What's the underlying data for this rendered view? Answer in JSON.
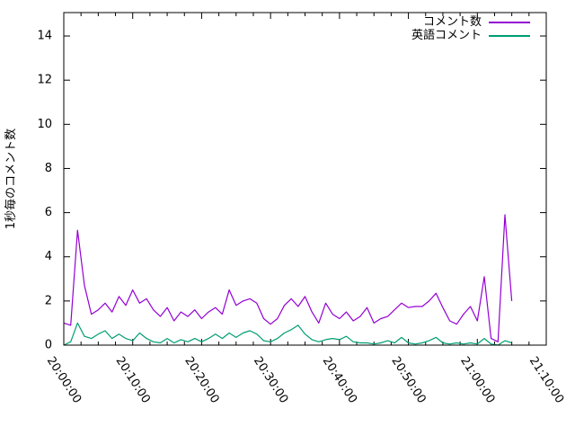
{
  "chart_data": {
    "type": "line",
    "title": "",
    "xlabel": "",
    "ylabel": "1秒毎のコメント数",
    "x_axis_kind": "time",
    "x_tick_labels": [
      "20:00:00",
      "20:10:00",
      "20:20:00",
      "20:30:00",
      "20:40:00",
      "20:50:00",
      "21:00:00",
      "21:10:00"
    ],
    "x_major_tick_minutes": 10,
    "x_minor_tick_minutes": 2.5,
    "xlim_minutes": [
      0,
      70
    ],
    "y_ticks": [
      0,
      2,
      4,
      6,
      8,
      10,
      12,
      14
    ],
    "ylim": [
      0,
      15.06
    ],
    "grid": "off",
    "legend_position": "top-right-inside",
    "axis_color": "#000000",
    "background_color": "#ffffff",
    "series": [
      {
        "id": "comments",
        "name": "コメント数",
        "color": "#9400d3",
        "x_minutes": [
          0,
          1,
          2,
          3,
          4,
          5,
          6,
          7,
          8,
          9,
          10,
          11,
          12,
          13,
          14,
          15,
          16,
          17,
          18,
          19,
          20,
          21,
          22,
          23,
          24,
          25,
          26,
          27,
          28,
          29,
          30,
          31,
          32,
          33,
          34,
          35,
          36,
          37,
          38,
          39,
          40,
          41,
          42,
          43,
          44,
          45,
          46,
          47,
          48,
          49,
          50,
          51,
          52,
          53,
          54,
          55,
          56,
          57,
          58,
          59,
          60,
          61,
          62,
          63,
          64,
          65
        ],
        "values": [
          1.0,
          0.9,
          5.2,
          2.7,
          1.4,
          1.6,
          1.9,
          1.5,
          2.2,
          1.8,
          2.5,
          1.9,
          2.1,
          1.6,
          1.3,
          1.7,
          1.1,
          1.5,
          1.3,
          1.6,
          1.2,
          1.5,
          1.7,
          1.4,
          2.5,
          1.8,
          2.0,
          2.1,
          1.9,
          1.2,
          0.95,
          1.2,
          1.8,
          2.1,
          1.75,
          2.2,
          1.5,
          1.0,
          1.9,
          1.4,
          1.2,
          1.5,
          1.1,
          1.3,
          1.7,
          1.0,
          1.2,
          1.3,
          1.6,
          1.9,
          1.7,
          1.75,
          1.75,
          2.0,
          2.35,
          1.7,
          1.1,
          0.95,
          1.4,
          1.75,
          1.1,
          3.1,
          0.3,
          0.15,
          5.9,
          2.0
        ]
      },
      {
        "id": "english-comments",
        "name": "英語コメント",
        "color": "#009e73",
        "x_minutes": [
          0,
          1,
          2,
          3,
          4,
          5,
          6,
          7,
          8,
          9,
          10,
          11,
          12,
          13,
          14,
          15,
          16,
          17,
          18,
          19,
          20,
          21,
          22,
          23,
          24,
          25,
          26,
          27,
          28,
          29,
          30,
          31,
          32,
          33,
          34,
          35,
          36,
          37,
          38,
          39,
          40,
          41,
          42,
          43,
          44,
          45,
          46,
          47,
          48,
          49,
          50,
          51,
          52,
          53,
          54,
          55,
          56,
          57,
          58,
          59,
          60,
          61,
          62,
          63,
          64,
          65
        ],
        "values": [
          0.0,
          0.15,
          1.0,
          0.4,
          0.3,
          0.5,
          0.65,
          0.3,
          0.5,
          0.3,
          0.2,
          0.55,
          0.3,
          0.15,
          0.1,
          0.3,
          0.1,
          0.25,
          0.15,
          0.3,
          0.15,
          0.3,
          0.5,
          0.3,
          0.55,
          0.35,
          0.55,
          0.65,
          0.5,
          0.2,
          0.15,
          0.3,
          0.55,
          0.7,
          0.9,
          0.5,
          0.25,
          0.15,
          0.25,
          0.3,
          0.25,
          0.4,
          0.15,
          0.1,
          0.1,
          0.05,
          0.1,
          0.2,
          0.1,
          0.35,
          0.1,
          0.05,
          0.1,
          0.2,
          0.35,
          0.1,
          0.05,
          0.1,
          0.05,
          0.1,
          0.05,
          0.3,
          0.05,
          0.0,
          0.2,
          0.1
        ]
      }
    ]
  }
}
